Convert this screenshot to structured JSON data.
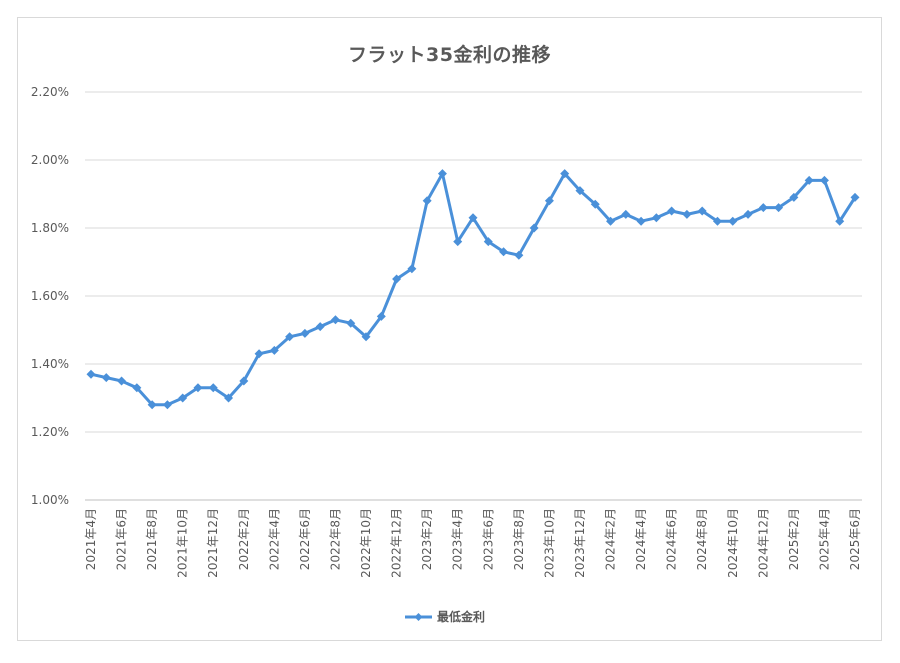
{
  "chart_data": {
    "type": "line",
    "title": "フラット35金利の推移",
    "xlabel": "",
    "ylabel": "",
    "ylim": [
      1.0,
      2.2
    ],
    "y_ticks": [
      "1.00%",
      "1.20%",
      "1.40%",
      "1.60%",
      "1.80%",
      "2.00%",
      "2.20%"
    ],
    "y_tick_values": [
      1.0,
      1.2,
      1.4,
      1.6,
      1.8,
      2.0,
      2.2
    ],
    "grid": true,
    "legend_position": "bottom",
    "x": [
      "2021年4月",
      "2021年5月",
      "2021年6月",
      "2021年7月",
      "2021年8月",
      "2021年9月",
      "2021年10月",
      "2021年11月",
      "2021年12月",
      "2022年1月",
      "2022年2月",
      "2022年3月",
      "2022年4月",
      "2022年5月",
      "2022年6月",
      "2022年7月",
      "2022年8月",
      "2022年9月",
      "2022年10月",
      "2022年11月",
      "2022年12月",
      "2023年1月",
      "2023年2月",
      "2023年3月",
      "2023年4月",
      "2023年5月",
      "2023年6月",
      "2023年7月",
      "2023年8月",
      "2023年9月",
      "2023年10月",
      "2023年11月",
      "2023年12月",
      "2024年1月",
      "2024年2月",
      "2024年3月",
      "2024年4月",
      "2024年5月",
      "2024年6月",
      "2024年7月",
      "2024年8月",
      "2024年9月",
      "2024年10月",
      "2024年11月",
      "2024年12月",
      "2025年1月",
      "2025年2月",
      "2025年3月",
      "2025年4月",
      "2025年5月",
      "2025年6月"
    ],
    "x_tick_labels": [
      "2021年4月",
      "2021年6月",
      "2021年8月",
      "2021年10月",
      "2021年12月",
      "2022年2月",
      "2022年4月",
      "2022年6月",
      "2022年8月",
      "2022年10月",
      "2022年12月",
      "2023年2月",
      "2023年4月",
      "2023年6月",
      "2023年8月",
      "2023年10月",
      "2023年12月",
      "2024年2月",
      "2024年4月",
      "2024年6月",
      "2024年8月",
      "2024年10月",
      "2024年12月",
      "2025年2月",
      "2025年4月",
      "2025年6月"
    ],
    "series": [
      {
        "name": "最低金利",
        "color": "#4a90d9",
        "values": [
          1.37,
          1.36,
          1.35,
          1.33,
          1.28,
          1.28,
          1.3,
          1.33,
          1.33,
          1.3,
          1.35,
          1.43,
          1.44,
          1.48,
          1.49,
          1.51,
          1.53,
          1.52,
          1.48,
          1.54,
          1.65,
          1.68,
          1.88,
          1.96,
          1.76,
          1.83,
          1.76,
          1.73,
          1.72,
          1.8,
          1.88,
          1.96,
          1.91,
          1.87,
          1.82,
          1.84,
          1.82,
          1.83,
          1.85,
          1.84,
          1.85,
          1.82,
          1.82,
          1.84,
          1.86,
          1.86,
          1.89,
          1.94,
          1.94,
          1.82,
          1.89
        ]
      }
    ]
  }
}
